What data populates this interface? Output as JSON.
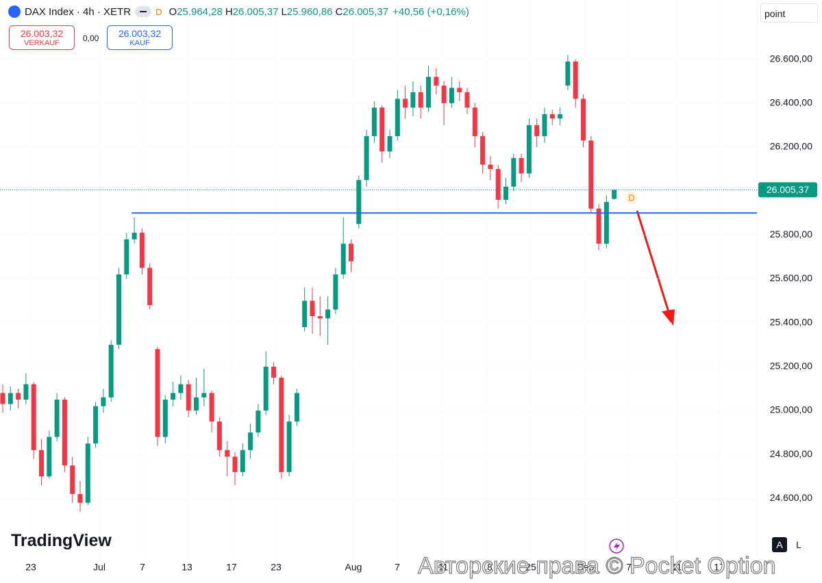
{
  "toolbar": {
    "symbol": "DAX Index · 4h · XETR",
    "badge": "D",
    "ohlc": [
      {
        "key": "O",
        "value": "25.964,28"
      },
      {
        "key": "H",
        "value": "26.005,37"
      },
      {
        "key": "L",
        "value": "25.960,86"
      },
      {
        "key": "C",
        "value": "26.005,37"
      }
    ],
    "change": "+40,56 (+0,16%)",
    "sell_price": "26.003,32",
    "sell_label": "VERKAUF",
    "spread": "0,00",
    "buy_price": "26.003,32",
    "buy_label": "KAUF",
    "unit_field": "point",
    "logo": "TradingView",
    "auto_button": "A",
    "log_button": "L",
    "watermark": "Авторские права © Pocket Option",
    "marker": "D"
  },
  "chart_data": {
    "type": "candlestick",
    "up_color": "#089981",
    "down_color": "#f23645",
    "ylim": [
      24330,
      26870
    ],
    "yticks": [
      {
        "value": 24600,
        "label": "24.600,00"
      },
      {
        "value": 24800,
        "label": "24.800,00"
      },
      {
        "value": 25000,
        "label": "25.000,00"
      },
      {
        "value": 25200,
        "label": "25.200,00"
      },
      {
        "value": 25400,
        "label": "25.400,00"
      },
      {
        "value": 25600,
        "label": "25.600,00"
      },
      {
        "value": 25800,
        "label": "25.800,00"
      },
      {
        "value": 26000,
        "label": "26.000,00"
      },
      {
        "value": 26200,
        "label": "26.200,00"
      },
      {
        "value": 26400,
        "label": "26.400,00"
      },
      {
        "value": 26600,
        "label": "26.600,00"
      }
    ],
    "x_labels": [
      "23",
      "Jul",
      "7",
      "13",
      "17",
      "23",
      "Aug",
      "7",
      "11",
      "18",
      "25",
      "Sep",
      "7",
      "11",
      "17"
    ],
    "grid": true,
    "last_price": {
      "value": 26005.37,
      "label": "26.005,37"
    },
    "level": {
      "value": 25900,
      "color": "#2962ff"
    },
    "open": [
      25080,
      25030,
      25080,
      25050,
      25120,
      24820,
      24700,
      24880,
      25050,
      24750,
      24620,
      24580,
      24850,
      25020,
      25060,
      25300,
      25620,
      25780,
      25810,
      25650,
      25280,
      24880,
      25050,
      25080,
      25120,
      25000,
      25060,
      25080,
      24950,
      24820,
      24790,
      24720,
      24820,
      24900,
      25000,
      25200,
      25150,
      24720,
      24950,
      25380,
      25500,
      25430,
      25420,
      25460,
      25620,
      25760,
      25850,
      26050,
      26250,
      26380,
      26180,
      26250,
      26420,
      26380,
      26450,
      26380,
      26520,
      26480,
      26400,
      26470,
      26450,
      26380,
      26250,
      26120,
      26100,
      25960,
      26020,
      26150,
      26080,
      26300,
      26250,
      26350,
      26330,
      26480,
      26590,
      26420,
      26230,
      25920,
      25760,
      25964.28
    ],
    "high": [
      25120,
      25110,
      25100,
      25170,
      25130,
      24870,
      24910,
      25080,
      25060,
      24790,
      24680,
      24880,
      25040,
      25100,
      25320,
      25650,
      25810,
      25880,
      25830,
      25670,
      25290,
      25070,
      25130,
      25160,
      25140,
      25150,
      25190,
      25090,
      24970,
      24860,
      24810,
      24850,
      24940,
      25030,
      25270,
      25220,
      25160,
      24980,
      25100,
      25560,
      25560,
      25520,
      25520,
      25650,
      25880,
      25780,
      26070,
      26280,
      26410,
      26390,
      26280,
      26460,
      26480,
      26500,
      26480,
      26570,
      26560,
      26500,
      26520,
      26500,
      26470,
      26400,
      26270,
      26160,
      26120,
      26060,
      26170,
      26170,
      26330,
      26330,
      26380,
      26370,
      26380,
      26620,
      26600,
      26440,
      26250,
      25940,
      25980,
      26005.37
    ],
    "low": [
      24990,
      25000,
      25010,
      25030,
      24780,
      24660,
      24690,
      24860,
      24720,
      24580,
      24540,
      24570,
      24830,
      24990,
      25040,
      25280,
      25600,
      25760,
      25620,
      25460,
      24840,
      24850,
      25020,
      25050,
      24970,
      24980,
      25020,
      24900,
      24790,
      24700,
      24660,
      24700,
      24780,
      24880,
      24980,
      25120,
      24690,
      24700,
      24930,
      25360,
      25350,
      25340,
      25300,
      25440,
      25600,
      25630,
      25830,
      26020,
      26220,
      26130,
      26150,
      26230,
      26330,
      26340,
      26330,
      26360,
      26440,
      26300,
      26380,
      26410,
      26350,
      26200,
      26080,
      26050,
      25920,
      25940,
      26000,
      26040,
      26060,
      26200,
      26220,
      26300,
      26300,
      26460,
      26380,
      26200,
      25900,
      25730,
      25740,
      25960.86
    ],
    "close": [
      25030,
      25080,
      25050,
      25120,
      24820,
      24700,
      24880,
      25050,
      24750,
      24620,
      24580,
      24850,
      25020,
      25060,
      25300,
      25620,
      25780,
      25810,
      25650,
      25480,
      24880,
      25050,
      25080,
      25120,
      25000,
      25060,
      25080,
      24950,
      24820,
      24790,
      24720,
      24820,
      24900,
      25000,
      25200,
      25150,
      24720,
      24950,
      25080,
      25500,
      25430,
      25420,
      25460,
      25620,
      25760,
      25680,
      26050,
      26250,
      26380,
      26180,
      26250,
      26420,
      26380,
      26450,
      26380,
      26520,
      26480,
      26400,
      26470,
      26450,
      26380,
      26250,
      26120,
      26100,
      25960,
      26020,
      26150,
      26080,
      26300,
      26250,
      26350,
      26330,
      26350,
      26590,
      26420,
      26230,
      25920,
      25760,
      25950,
      26005.37
    ]
  }
}
